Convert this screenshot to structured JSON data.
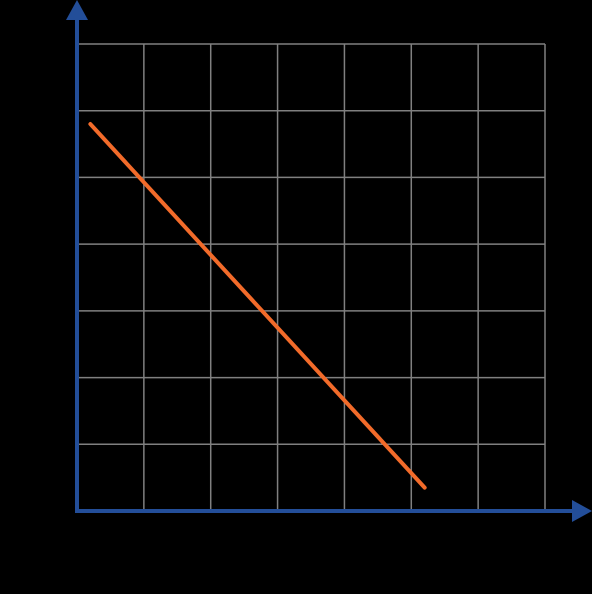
{
  "chart_data": {
    "type": "line",
    "title": "",
    "xlabel": "",
    "ylabel": "",
    "xlim": [
      0,
      7
    ],
    "ylim": [
      0,
      7
    ],
    "grid": true,
    "series": [
      {
        "x": [
          0.2,
          5.2
        ],
        "y": [
          5.8,
          0.35
        ]
      }
    ]
  },
  "colors": {
    "background": "#000000",
    "axis": "#234e99",
    "grid": "#808080",
    "line": "#f26b2a"
  }
}
